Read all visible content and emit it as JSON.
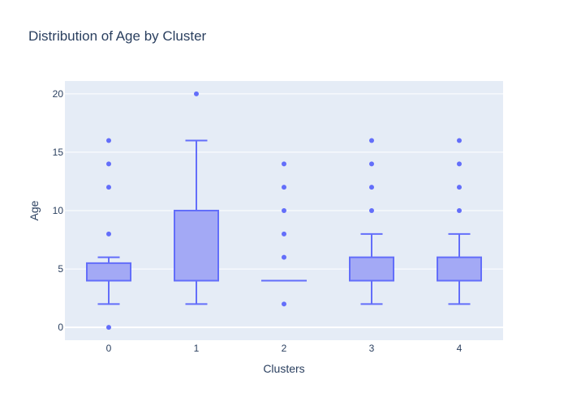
{
  "chart_data": {
    "type": "box",
    "title": "Distribution of Age by Cluster",
    "xlabel": "Clusters",
    "ylabel": "Age",
    "categories": [
      "0",
      "1",
      "2",
      "3",
      "4"
    ],
    "ylim": [
      -1.1,
      21.1
    ],
    "yticks": [
      0,
      5,
      10,
      15,
      20
    ],
    "grid": true,
    "legend": "none",
    "colors": {
      "plot_bg": "#e5ecf6",
      "grid": "#ffffff",
      "box_line": "#636efa",
      "box_fill": "#a3a9f5",
      "outlier": "#636efa",
      "text": "#2a3f5f"
    },
    "boxes": [
      {
        "category": "0",
        "min": 2,
        "q1": 4,
        "median": 4,
        "q3": 5.5,
        "max": 6,
        "outliers": [
          0,
          8,
          12,
          14,
          16
        ]
      },
      {
        "category": "1",
        "min": 2,
        "q1": 4,
        "median": 4,
        "q3": 10,
        "max": 16,
        "outliers": [
          20
        ]
      },
      {
        "category": "2",
        "min": 4,
        "q1": 4,
        "median": 4,
        "q3": 4,
        "max": 4,
        "outliers": [
          2,
          6,
          8,
          10,
          12,
          14
        ]
      },
      {
        "category": "3",
        "min": 2,
        "q1": 4,
        "median": 4,
        "q3": 6,
        "max": 8,
        "outliers": [
          10,
          12,
          14,
          16
        ]
      },
      {
        "category": "4",
        "min": 2,
        "q1": 4,
        "median": 4,
        "q3": 6,
        "max": 8,
        "outliers": [
          10,
          12,
          14,
          16
        ]
      }
    ]
  }
}
